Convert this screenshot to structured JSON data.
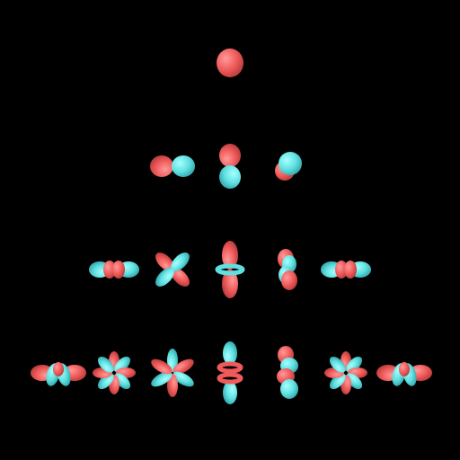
{
  "colors": {
    "background": "#000000",
    "positive_lobe": "#ef5a5a",
    "negative_lobe": "#5fe0e0"
  },
  "diagram": {
    "description_free": true,
    "rows": [
      {
        "l": 0,
        "orbitals": [
          {
            "m": 0,
            "shape": "sphere"
          }
        ]
      },
      {
        "l": 1,
        "orbitals": [
          {
            "m": -1,
            "shape": "p-horizontal"
          },
          {
            "m": 0,
            "shape": "p-vertical"
          },
          {
            "m": 1,
            "shape": "p-diagonal"
          }
        ]
      },
      {
        "l": 2,
        "orbitals": [
          {
            "m": -2,
            "shape": "d-flat-ring"
          },
          {
            "m": -1,
            "shape": "d-cloverleaf"
          },
          {
            "m": 0,
            "shape": "d-z2"
          },
          {
            "m": 1,
            "shape": "d-vertical-pair"
          },
          {
            "m": 2,
            "shape": "d-flat-ring"
          }
        ]
      },
      {
        "l": 3,
        "orbitals": [
          {
            "m": -3,
            "shape": "f-flat"
          },
          {
            "m": -2,
            "shape": "f-cloverleaf"
          },
          {
            "m": -1,
            "shape": "f-six-lobe"
          },
          {
            "m": 0,
            "shape": "f-z3"
          },
          {
            "m": 1,
            "shape": "f-vertical-stack"
          },
          {
            "m": 2,
            "shape": "f-cloverleaf"
          },
          {
            "m": 3,
            "shape": "f-flat"
          }
        ]
      }
    ]
  }
}
